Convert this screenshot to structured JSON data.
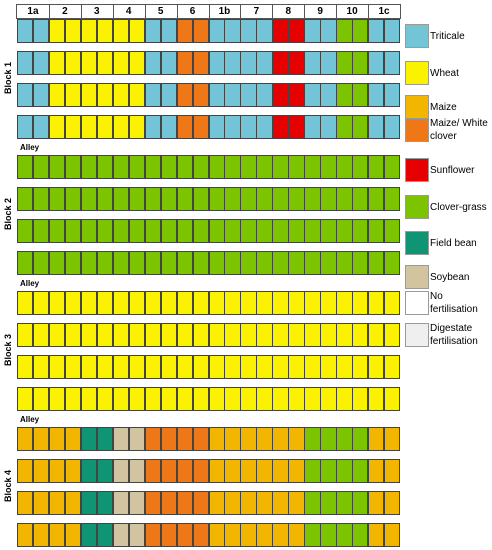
{
  "columns": [
    "1a",
    "2",
    "3",
    "4",
    "5",
    "6",
    "1b",
    "7",
    "8",
    "9",
    "10",
    "1c"
  ],
  "column_cell_counts": [
    2,
    2,
    2,
    2,
    2,
    2,
    2,
    2,
    2,
    2,
    2,
    2
  ],
  "blocks": [
    {
      "label": "Block 1",
      "rows": [
        [
          "triticale",
          "wheat",
          "wheat",
          "wheat",
          "triticale",
          "maize_clover",
          "triticale",
          "triticale",
          "sunflower",
          "triticale",
          "clover",
          "triticale"
        ],
        [
          "triticale",
          "wheat",
          "wheat",
          "wheat",
          "triticale",
          "maize_clover",
          "triticale",
          "triticale",
          "sunflower",
          "triticale",
          "clover",
          "triticale"
        ],
        [
          "triticale",
          "wheat",
          "wheat",
          "wheat",
          "triticale",
          "maize_clover",
          "triticale",
          "triticale",
          "sunflower",
          "triticale",
          "clover",
          "triticale"
        ],
        [
          "triticale",
          "wheat",
          "wheat",
          "wheat",
          "triticale",
          "maize_clover",
          "triticale",
          "triticale",
          "sunflower",
          "triticale",
          "clover",
          "triticale"
        ]
      ]
    },
    {
      "label": "Block 2",
      "rows": [
        [
          "clover",
          "clover",
          "clover",
          "clover",
          "clover",
          "clover",
          "clover",
          "clover",
          "clover",
          "clover",
          "clover",
          "clover"
        ],
        [
          "clover",
          "clover",
          "clover",
          "clover",
          "clover",
          "clover",
          "clover",
          "clover",
          "clover",
          "clover",
          "clover",
          "clover"
        ],
        [
          "clover",
          "clover",
          "clover",
          "clover",
          "clover",
          "clover",
          "clover",
          "clover",
          "clover",
          "clover",
          "clover",
          "clover"
        ],
        [
          "clover",
          "clover",
          "clover",
          "clover",
          "clover",
          "clover",
          "clover",
          "clover",
          "clover",
          "clover",
          "clover",
          "clover"
        ]
      ]
    },
    {
      "label": "Block 3",
      "rows": [
        [
          "wheat",
          "wheat",
          "wheat",
          "wheat",
          "wheat",
          "wheat",
          "wheat",
          "wheat",
          "wheat",
          "wheat",
          "wheat",
          "wheat"
        ],
        [
          "wheat",
          "wheat",
          "wheat",
          "wheat",
          "wheat",
          "wheat",
          "wheat",
          "wheat",
          "wheat",
          "wheat",
          "wheat",
          "wheat"
        ],
        [
          "wheat",
          "wheat",
          "wheat",
          "wheat",
          "wheat",
          "wheat",
          "wheat",
          "wheat",
          "wheat",
          "wheat",
          "wheat",
          "wheat"
        ],
        [
          "wheat",
          "wheat",
          "wheat",
          "wheat",
          "wheat",
          "wheat",
          "wheat",
          "wheat",
          "wheat",
          "wheat",
          "wheat",
          "wheat"
        ]
      ]
    },
    {
      "label": "Block 4",
      "rows": [
        [
          "maize",
          "maize",
          "fieldbean",
          "soybean",
          "maize_clover",
          "maize_clover",
          "maize",
          "maize",
          "maize",
          "clover",
          "clover",
          "maize"
        ],
        [
          "maize",
          "maize",
          "fieldbean",
          "soybean",
          "maize_clover",
          "maize_clover",
          "maize",
          "maize",
          "maize",
          "clover",
          "clover",
          "maize"
        ],
        [
          "maize",
          "maize",
          "fieldbean",
          "soybean",
          "maize_clover",
          "maize_clover",
          "maize",
          "maize",
          "maize",
          "clover",
          "clover",
          "maize"
        ],
        [
          "maize",
          "maize",
          "fieldbean",
          "soybean",
          "maize_clover",
          "maize_clover",
          "maize",
          "maize",
          "maize",
          "clover",
          "clover",
          "maize"
        ]
      ]
    }
  ],
  "alley_label": "Alley",
  "legend": [
    {
      "key": "triticale",
      "label": "Triticale",
      "color": "#74c4d8"
    },
    {
      "key": "wheat",
      "label": "Wheat",
      "color": "#fbf200"
    },
    {
      "key": "maize",
      "label": "Maize",
      "color": "#f2b600"
    },
    {
      "key": "maize_clover",
      "label": "Maize/ White clover",
      "color": "#ee7818"
    },
    {
      "key": "sunflower",
      "label": "Sunflower",
      "color": "#e60000"
    },
    {
      "key": "clover",
      "label": "Clover-grass",
      "color": "#7cc400"
    },
    {
      "key": "fieldbean",
      "label": "Field bean",
      "color": "#0f9574"
    },
    {
      "key": "soybean",
      "label": "Soybean",
      "color": "#d1c49f"
    },
    {
      "key": "none",
      "label": "No fertilisation",
      "color": "#ffffff"
    },
    {
      "key": "digestate",
      "label": "Digestate fertilisation",
      "color": "#efefef"
    }
  ]
}
